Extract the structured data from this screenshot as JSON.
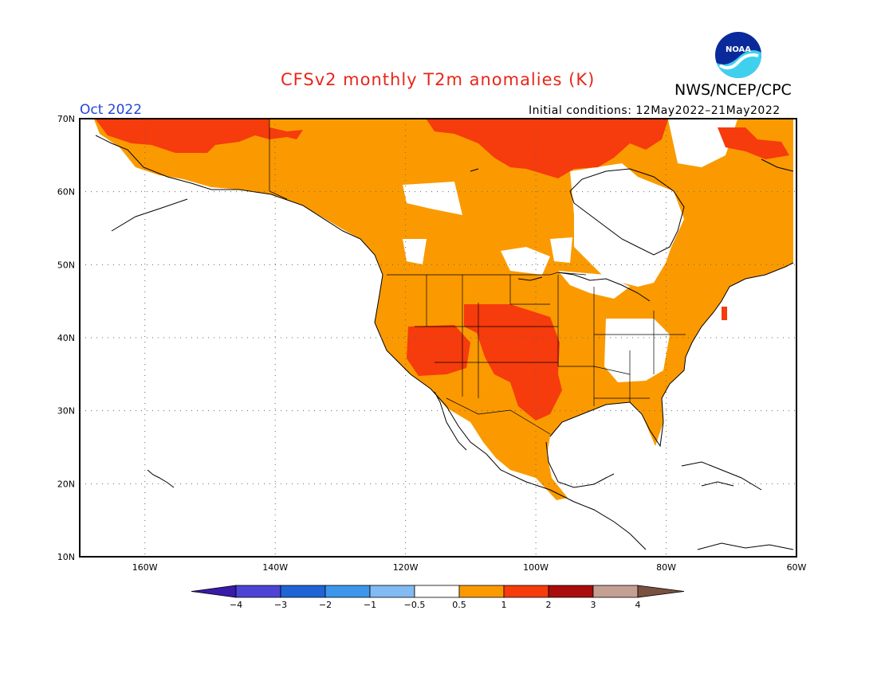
{
  "title": "CFSv2 monthly T2m anomalies (K)",
  "organization": "NWS/NCEP/CPC",
  "logo_text": "NOAA",
  "valid_month": "Oct 2022",
  "initial_conditions": "Initial conditions: 12May2022–21May2022",
  "map": {
    "lon_range": [
      -170,
      -60
    ],
    "lat_range": [
      10,
      70
    ],
    "lat_ticks": [
      {
        "value": 70,
        "label": "70N"
      },
      {
        "value": 60,
        "label": "60N"
      },
      {
        "value": 50,
        "label": "50N"
      },
      {
        "value": 40,
        "label": "40N"
      },
      {
        "value": 30,
        "label": "30N"
      },
      {
        "value": 20,
        "label": "20N"
      },
      {
        "value": 10,
        "label": "10N"
      }
    ],
    "lon_ticks": [
      {
        "value": -160,
        "label": "160W"
      },
      {
        "value": -140,
        "label": "140W"
      },
      {
        "value": -120,
        "label": "120W"
      },
      {
        "value": -100,
        "label": "100W"
      },
      {
        "value": -80,
        "label": "80W"
      },
      {
        "value": -60,
        "label": "60W"
      }
    ],
    "grid": "dotted"
  },
  "colorbar": {
    "labels": [
      "−4",
      "−3",
      "−2",
      "−1",
      "−0.5",
      "0.5",
      "1",
      "2",
      "3",
      "4"
    ],
    "colors": [
      "#3a1aa8",
      "#4b44d4",
      "#1e64d6",
      "#3c96ec",
      "#82baf2",
      "#ffffff",
      "#fa9a00",
      "#f63b0c",
      "#a80c0c",
      "#c4a092",
      "#7a5040"
    ]
  }
}
